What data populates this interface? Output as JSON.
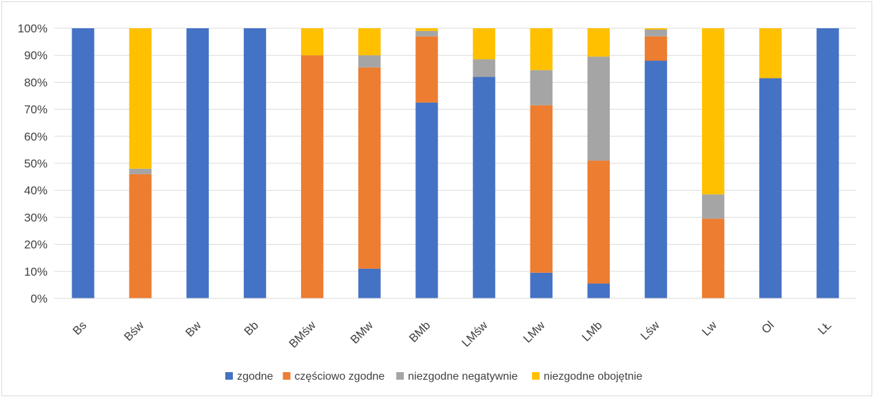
{
  "chart_data": {
    "type": "bar",
    "stacked": true,
    "normalized": true,
    "title": "",
    "xlabel": "",
    "ylabel": "",
    "ylim": [
      0,
      100
    ],
    "y_ticks": [
      "0%",
      "10%",
      "20%",
      "30%",
      "40%",
      "50%",
      "60%",
      "70%",
      "80%",
      "90%",
      "100%"
    ],
    "grid": true,
    "legend_position": "bottom",
    "categories": [
      "Bs",
      "Bśw",
      "Bw",
      "Bb",
      "BMśw",
      "BMw",
      "BMb",
      "LMśw",
      "LMw",
      "LMb",
      "Lśw",
      "Lw",
      "Ol",
      "LŁ"
    ],
    "series": [
      {
        "name": "zgodne",
        "color": "#4472c4",
        "values": [
          100,
          0,
          100,
          100,
          0,
          11,
          72.5,
          82,
          9.5,
          5.5,
          88,
          0,
          81.5,
          100
        ]
      },
      {
        "name": "częściowo zgodne",
        "color": "#ed7d31",
        "values": [
          0,
          46,
          0,
          0,
          90,
          74.5,
          24.5,
          0,
          62,
          45.5,
          9,
          29.5,
          0,
          0
        ]
      },
      {
        "name": "niezgodne negatywnie",
        "color": "#a5a5a5",
        "values": [
          0,
          2,
          0,
          0,
          0,
          4.5,
          2,
          6.5,
          13,
          38.5,
          2.5,
          9,
          0,
          0
        ]
      },
      {
        "name": "niezgodne obojętnie",
        "color": "#ffc000",
        "values": [
          0,
          52,
          0,
          0,
          10,
          10,
          1,
          11.5,
          15.5,
          10.5,
          0.5,
          61.5,
          18.5,
          0
        ]
      }
    ]
  }
}
